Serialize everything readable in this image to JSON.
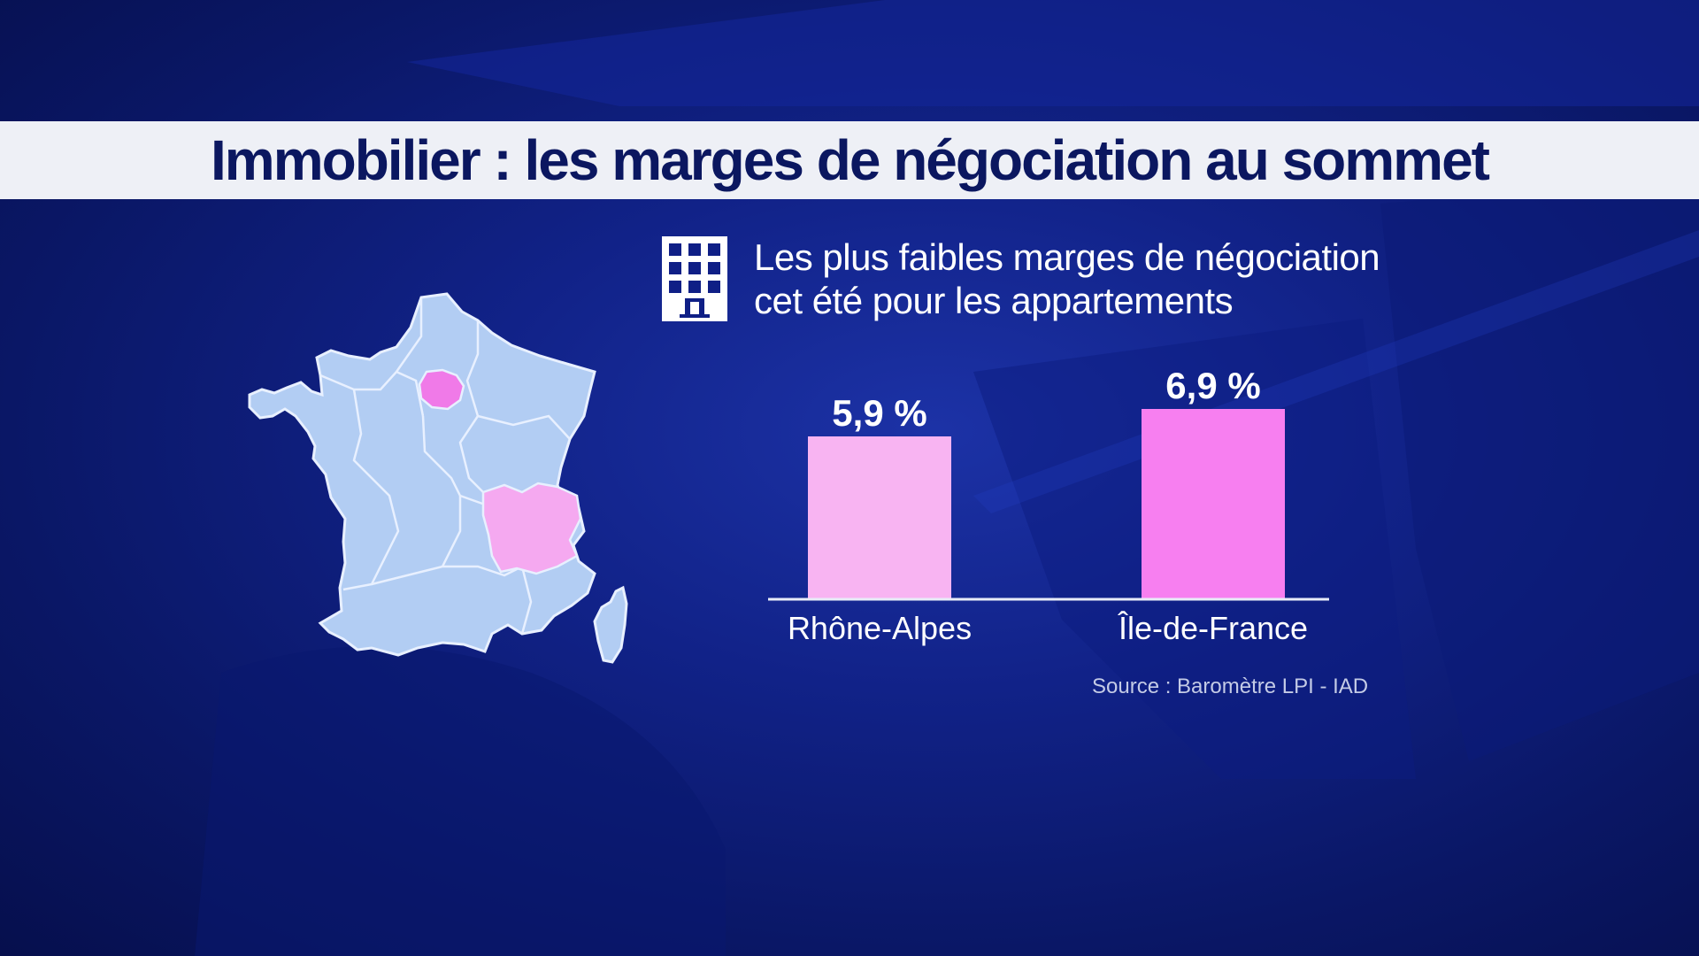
{
  "title": "Immobilier : les marges de négociation au sommet",
  "subtitle_lines": [
    "Les plus faibles marges de négociation",
    "cet été pour les appartements"
  ],
  "source": "Source : Baromètre LPI - IAD",
  "icons": {
    "header_icon": "building-icon"
  },
  "colors": {
    "background": "#0f1f86",
    "title_band": "#eef0f6",
    "title_text": "#0b1760",
    "map_base": "#b2cdf3",
    "map_border": "#e8f0ff",
    "highlight_ile_de_france": "#f07ae8",
    "highlight_rhone_alpes": "#f5a9f0",
    "bar_rhone_alpes": "#f8b4f2",
    "bar_ile_de_france": "#f77ff0"
  },
  "map": {
    "highlighted_regions": [
      "Île-de-France",
      "Rhône-Alpes"
    ]
  },
  "chart_data": {
    "type": "bar",
    "categories": [
      "Rhône-Alpes",
      "Île-de-France"
    ],
    "values": [
      5.9,
      6.9
    ],
    "value_labels": [
      "5,9 %",
      "6,9 %"
    ],
    "unit": "%",
    "ylim": [
      0,
      7.5
    ],
    "grid": false,
    "legend": "none"
  }
}
